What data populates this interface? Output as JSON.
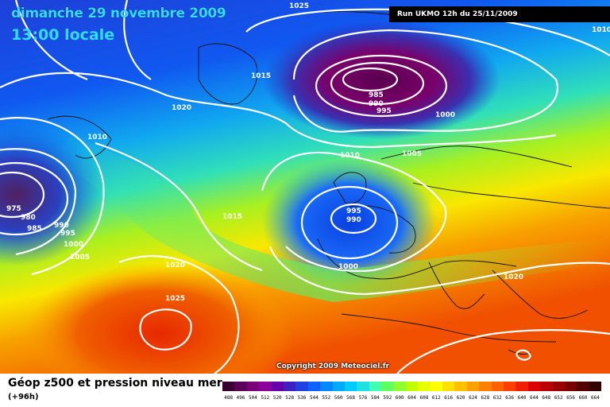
{
  "header": {
    "date": "dimanche 29 novembre 2009",
    "time": "13:00 locale",
    "run": "Run UKMO 12h du 25/11/2009"
  },
  "copyright": "Copyright 2009 Meteociel.fr",
  "product": {
    "title": "Géop z500 et pression niveau mer",
    "subtitle": "(+96h)"
  },
  "isobar_labels": [
    "1025",
    "1010",
    "1015",
    "1020",
    "1010",
    "975",
    "980",
    "985",
    "990",
    "995",
    "1000",
    "1005",
    "1015",
    "1020",
    "1025",
    "985",
    "990",
    "995",
    "1000",
    "1010",
    "1005",
    "995",
    "990",
    "1000",
    "1020"
  ],
  "legend": {
    "values": [
      "488",
      "496",
      "504",
      "512",
      "520",
      "528",
      "536",
      "544",
      "552",
      "560",
      "568",
      "576",
      "584",
      "592",
      "600",
      "604",
      "608",
      "612",
      "616",
      "620",
      "624",
      "628",
      "632",
      "636",
      "640",
      "644",
      "648",
      "652",
      "656",
      "660",
      "664",
      "668",
      "672",
      "676",
      "680",
      "684",
      "688",
      "692",
      "696",
      "700"
    ],
    "colors": [
      "#3b0033",
      "#5a0059",
      "#7a007a",
      "#8c0099",
      "#6600aa",
      "#4020c0",
      "#2040e0",
      "#1060ff",
      "#0088ff",
      "#00aaff",
      "#00ccff",
      "#20e0e0",
      "#40ffb0",
      "#60ff60",
      "#90ff30",
      "#c0ff00",
      "#e8ff00",
      "#ffff00",
      "#ffe000",
      "#ffc000",
      "#ffa000",
      "#ff8000",
      "#ff6000",
      "#ff4000",
      "#ee2000",
      "#dd0000",
      "#bb0000",
      "#990000",
      "#770000",
      "#550000",
      "#330000",
      "#220000",
      "#111111",
      "#000000",
      "#ffffff",
      "#ffffff",
      "#ffffff",
      "#ffffff",
      "#ffffff",
      "#ffffff"
    ]
  }
}
